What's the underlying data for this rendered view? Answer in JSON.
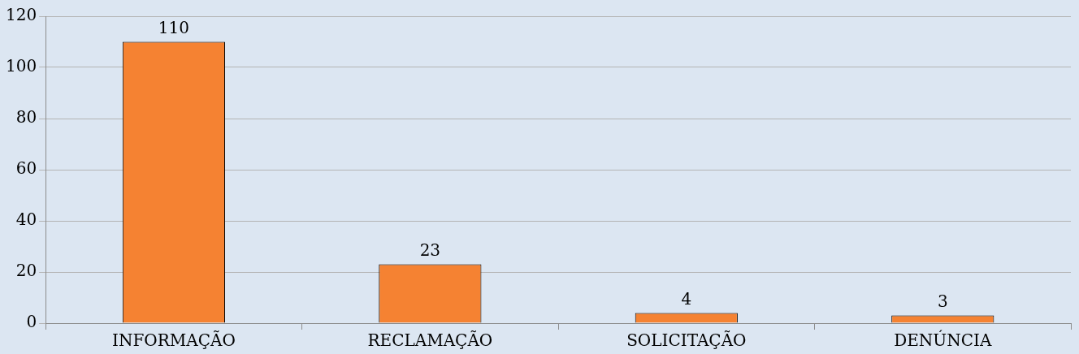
{
  "chart_data": {
    "type": "bar",
    "categories": [
      "INFORMAÇÃO",
      "RECLAMAÇÃO",
      "SOLICITAÇÃO",
      "DENÚNCIA"
    ],
    "values": [
      110,
      23,
      4,
      3
    ],
    "color": "#f58232",
    "ylim": [
      0,
      120
    ],
    "yticks": [
      0,
      20,
      40,
      60,
      80,
      100,
      120
    ],
    "grid": "y",
    "data_labels": true,
    "legend": false
  }
}
